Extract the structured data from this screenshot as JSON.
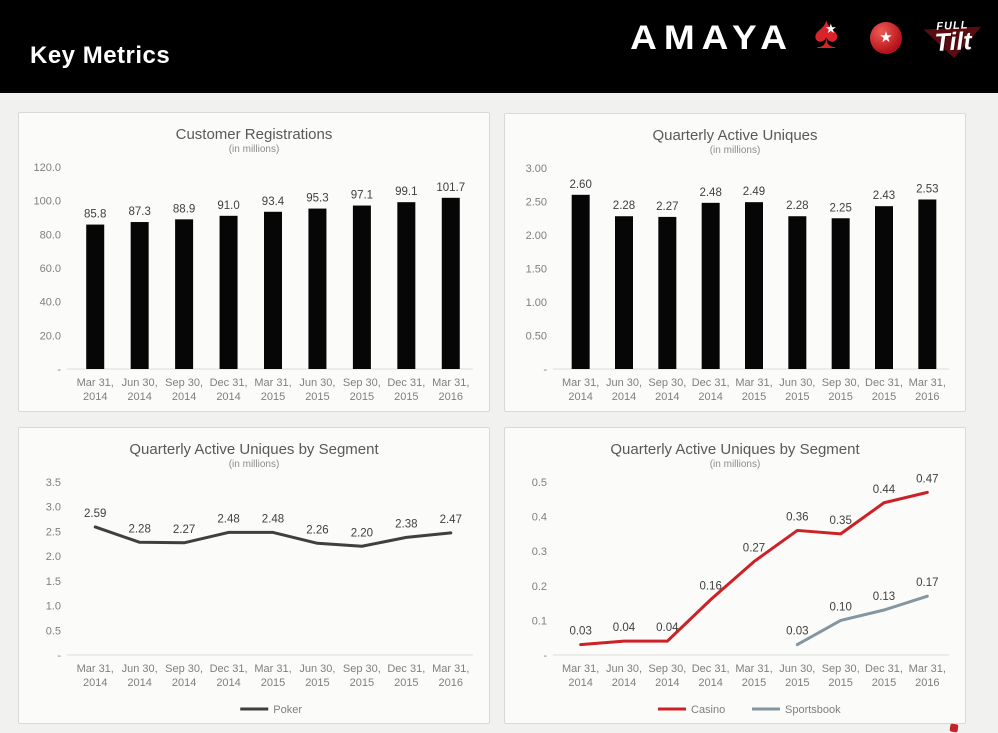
{
  "header": {
    "title": "Key Metrics",
    "brand": "AMAYA",
    "spade_glyph": "♠",
    "star_glyph": "★",
    "ball_star_glyph": "★",
    "fulltilt_top": "FULL",
    "fulltilt_bottom": "Tilt"
  },
  "colors": {
    "header_bg": "#000000",
    "page_bg": "#f1f1ef",
    "panel_bg": "#fbfbf9",
    "panel_border": "#d9d9d6",
    "bar_black": "#060606",
    "poker_line": "#3f3f3f",
    "casino_red": "#cc2127",
    "sportsbook_gray": "#8496a1",
    "accent_red": "#d8232a"
  },
  "chart_data": [
    {
      "id": "customer-registrations",
      "type": "bar",
      "title": "Customer Registrations",
      "subtitle": "(in millions)",
      "categories": [
        [
          "Mar 31,",
          "2014"
        ],
        [
          "Jun 30,",
          "2014"
        ],
        [
          "Sep 30,",
          "2014"
        ],
        [
          "Dec 31,",
          "2014"
        ],
        [
          "Mar 31,",
          "2015"
        ],
        [
          "Jun 30,",
          "2015"
        ],
        [
          "Sep 30,",
          "2015"
        ],
        [
          "Dec 31,",
          "2015"
        ],
        [
          "Mar 31,",
          "2016"
        ]
      ],
      "ylim": [
        0,
        120
      ],
      "yticks": [
        {
          "v": 120,
          "t": "120.0"
        },
        {
          "v": 100,
          "t": "100.0"
        },
        {
          "v": 80,
          "t": "80.0"
        },
        {
          "v": 60,
          "t": "60.0"
        },
        {
          "v": 40,
          "t": "40.0"
        },
        {
          "v": 20,
          "t": "20.0"
        },
        {
          "v": 0,
          "t": "-"
        }
      ],
      "grid": false,
      "legend": [],
      "series": [
        {
          "name": "Customer Registrations",
          "color": "#060606",
          "values": [
            85.8,
            87.3,
            88.9,
            91.0,
            93.4,
            95.3,
            97.1,
            99.1,
            101.7
          ],
          "labels": [
            "85.8",
            "87.3",
            "88.9",
            "91.0",
            "93.4",
            "95.3",
            "97.1",
            "99.1",
            "101.7"
          ]
        }
      ]
    },
    {
      "id": "quarterly-active-uniques",
      "type": "bar",
      "title": "Quarterly Active Uniques",
      "subtitle": "(in millions)",
      "categories": [
        [
          "Mar 31,",
          "2014"
        ],
        [
          "Jun 30,",
          "2014"
        ],
        [
          "Sep 30,",
          "2014"
        ],
        [
          "Dec 31,",
          "2014"
        ],
        [
          "Mar 31,",
          "2015"
        ],
        [
          "Jun 30,",
          "2015"
        ],
        [
          "Sep 30,",
          "2015"
        ],
        [
          "Dec 31,",
          "2015"
        ],
        [
          "Mar 31,",
          "2016"
        ]
      ],
      "ylim": [
        0,
        3
      ],
      "yticks": [
        {
          "v": 3,
          "t": "3.00"
        },
        {
          "v": 2.5,
          "t": "2.50"
        },
        {
          "v": 2,
          "t": "2.00"
        },
        {
          "v": 1.5,
          "t": "1.50"
        },
        {
          "v": 1,
          "t": "1.00"
        },
        {
          "v": 0.5,
          "t": "0.50"
        },
        {
          "v": 0,
          "t": "-"
        }
      ],
      "grid": false,
      "legend": [],
      "series": [
        {
          "name": "Quarterly Active Uniques",
          "color": "#060606",
          "values": [
            2.6,
            2.28,
            2.27,
            2.48,
            2.49,
            2.28,
            2.25,
            2.43,
            2.53
          ],
          "labels": [
            "2.60",
            "2.28",
            "2.27",
            "2.48",
            "2.49",
            "2.28",
            "2.25",
            "2.43",
            "2.53"
          ]
        }
      ]
    },
    {
      "id": "uniques-by-segment-poker",
      "type": "line",
      "title": "Quarterly Active Uniques by Segment",
      "subtitle": "(in millions)",
      "categories": [
        [
          "Mar 31,",
          "2014"
        ],
        [
          "Jun 30,",
          "2014"
        ],
        [
          "Sep 30,",
          "2014"
        ],
        [
          "Dec 31,",
          "2014"
        ],
        [
          "Mar 31,",
          "2015"
        ],
        [
          "Jun 30,",
          "2015"
        ],
        [
          "Sep 30,",
          "2015"
        ],
        [
          "Dec 31,",
          "2015"
        ],
        [
          "Mar 31,",
          "2016"
        ]
      ],
      "ylim": [
        0,
        3.5
      ],
      "yticks": [
        {
          "v": 3.5,
          "t": "3.5"
        },
        {
          "v": 3,
          "t": "3.0"
        },
        {
          "v": 2.5,
          "t": "2.5"
        },
        {
          "v": 2,
          "t": "2.0"
        },
        {
          "v": 1.5,
          "t": "1.5"
        },
        {
          "v": 1,
          "t": "1.0"
        },
        {
          "v": 0.5,
          "t": "0.5"
        },
        {
          "v": 0,
          "t": "-"
        }
      ],
      "grid": false,
      "legend": [
        {
          "label": "Poker",
          "color": "#3f3f3f"
        }
      ],
      "series": [
        {
          "name": "Poker",
          "color": "#3f3f3f",
          "start": 0,
          "values": [
            2.59,
            2.28,
            2.27,
            2.48,
            2.48,
            2.26,
            2.2,
            2.38,
            2.47
          ],
          "labels": [
            "2.59",
            "2.28",
            "2.27",
            "2.48",
            "2.48",
            "2.26",
            "2.20",
            "2.38",
            "2.47"
          ]
        }
      ]
    },
    {
      "id": "uniques-by-segment-casino-sportsbook",
      "type": "line",
      "title": "Quarterly Active Uniques by Segment",
      "subtitle": "(in millions)",
      "categories": [
        [
          "Mar 31,",
          "2014"
        ],
        [
          "Jun 30,",
          "2014"
        ],
        [
          "Sep 30,",
          "2014"
        ],
        [
          "Dec 31,",
          "2014"
        ],
        [
          "Mar 31,",
          "2015"
        ],
        [
          "Jun 30,",
          "2015"
        ],
        [
          "Sep 30,",
          "2015"
        ],
        [
          "Dec 31,",
          "2015"
        ],
        [
          "Mar 31,",
          "2016"
        ]
      ],
      "ylim": [
        0,
        0.5
      ],
      "yticks": [
        {
          "v": 0.5,
          "t": "0.5"
        },
        {
          "v": 0.4,
          "t": "0.4"
        },
        {
          "v": 0.3,
          "t": "0.3"
        },
        {
          "v": 0.2,
          "t": "0.2"
        },
        {
          "v": 0.1,
          "t": "0.1"
        },
        {
          "v": 0,
          "t": "-"
        }
      ],
      "grid": false,
      "legend": [
        {
          "label": "Casino",
          "color": "#cc2127"
        },
        {
          "label": "Sportsbook",
          "color": "#8496a1"
        }
      ],
      "series": [
        {
          "name": "Casino",
          "color": "#cc2127",
          "start": 0,
          "values": [
            0.03,
            0.04,
            0.04,
            0.16,
            0.27,
            0.36,
            0.35,
            0.44,
            0.47
          ],
          "labels": [
            "0.03",
            "0.04",
            "0.04",
            "0.16",
            "0.27",
            "0.36",
            "0.35",
            "0.44",
            "0.47"
          ]
        },
        {
          "name": "Sportsbook",
          "color": "#8496a1",
          "start": 5,
          "values": [
            0.03,
            0.1,
            0.13,
            0.17
          ],
          "labels": [
            "0.03",
            "0.10",
            "0.13",
            "0.17"
          ]
        }
      ]
    }
  ]
}
